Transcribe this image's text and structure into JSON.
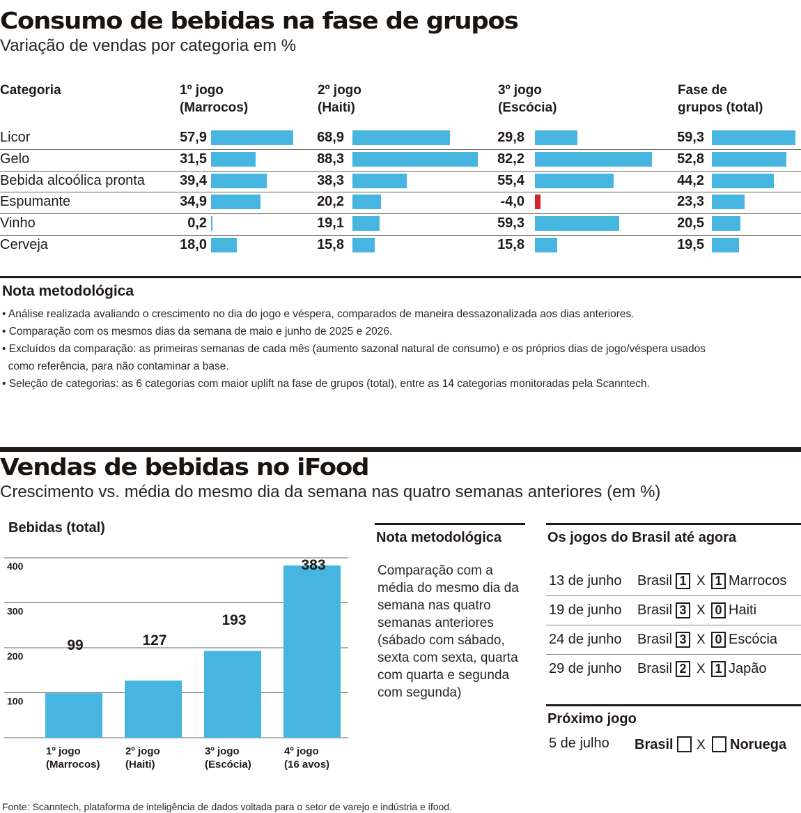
{
  "section1": {
    "title": "Consumo de bebidas na fase de grupos",
    "subtitle": "Variação de vendas por categoria em %",
    "headers": {
      "categoria": "Categoria",
      "g1": [
        "1º jogo",
        "(Marrocos)"
      ],
      "g2": [
        "2º jogo",
        "(Haiti)"
      ],
      "g3": [
        "3º jogo",
        "(Escócia)"
      ],
      "total": [
        "Fase de",
        "grupos (total)"
      ]
    },
    "colors": {
      "positive": "#46b6e0",
      "negative": "#d3232a"
    },
    "rows": [
      {
        "label": "Licor",
        "values": [
          "57,9",
          "68,9",
          "29,8",
          "59,3"
        ],
        "num": [
          57.9,
          68.9,
          29.8,
          59.3
        ]
      },
      {
        "label": "Gelo",
        "values": [
          "31,5",
          "88,3",
          "82,2",
          "52,8"
        ],
        "num": [
          31.5,
          88.3,
          82.2,
          52.8
        ]
      },
      {
        "label": "Bebida alcoólica pronta",
        "values": [
          "39,4",
          "38,3",
          "55,4",
          "44,2"
        ],
        "num": [
          39.4,
          38.3,
          55.4,
          44.2
        ]
      },
      {
        "label": "Espumante",
        "values": [
          "34,9",
          "20,2",
          "-4,0",
          "23,3"
        ],
        "num": [
          34.9,
          20.2,
          -4.0,
          23.3
        ]
      },
      {
        "label": "Vinho",
        "values": [
          "0,2",
          "19,1",
          "59,3",
          "20,5"
        ],
        "num": [
          0.2,
          19.1,
          59.3,
          20.5
        ]
      },
      {
        "label": "Cerveja",
        "values": [
          "18,0",
          "15,8",
          "15,8",
          "19,5"
        ],
        "num": [
          18.0,
          15.8,
          15.8,
          19.5
        ]
      }
    ],
    "note_title": "Nota metodológica",
    "notes": [
      "• Análise realizada avaliando o crescimento no dia do jogo e véspera, comparados de maneira dessazonalizada aos dias anteriores.",
      "• Comparação com os mesmos dias da semana de maio e junho de 2025 e 2026.",
      "• Excluídos da comparação: as primeiras semanas de cada mês (aumento sazonal natural de consumo) e os próprios dias de jogo/véspera usados",
      "  como referência, para não contaminar a base.",
      "• Seleção de categorias: as 6 categorias com maior uplift na fase de grupos (total), entre as 14 categorias monitoradas pela Scanntech."
    ]
  },
  "section2": {
    "title": "Vendas de bebidas no iFood",
    "subtitle": "Crescimento vs. média do mesmo dia da semana nas quatro semanas anteriores (em %)",
    "note_title": "Nota metodológica",
    "note_lines": [
      "Comparação com a",
      "média do mesmo dia da",
      "semana nas quatro",
      "semanas anteriores",
      "(sábado com sábado,",
      "sexta com sexta, quarta",
      "com quarta e segunda",
      "com segunda)"
    ],
    "games_title": "Os jogos do Brasil até agora",
    "games": [
      {
        "date": "13 de junho",
        "home": "Brasil",
        "home_score": "1",
        "x": "X",
        "away_score": "1",
        "away": "Marrocos"
      },
      {
        "date": "19 de junho",
        "home": "Brasil",
        "home_score": "3",
        "x": "X",
        "away_score": "0",
        "away": "Haiti"
      },
      {
        "date": "24 de junho",
        "home": "Brasil",
        "home_score": "3",
        "x": "X",
        "away_score": "0",
        "away": "Escócia"
      },
      {
        "date": "29 de junho",
        "home": "Brasil",
        "home_score": "2",
        "x": "X",
        "away_score": "1",
        "away": "Japão"
      }
    ],
    "next_title": "Próximo jogo",
    "next_game": {
      "date": "5 de julho",
      "home": "Brasil",
      "x": "X",
      "away": "Noruega"
    }
  },
  "chart_data": {
    "type": "bar",
    "title": "Bebidas (total)",
    "categories": [
      [
        "1º jogo",
        "(Marrocos)"
      ],
      [
        "2º jogo",
        "(Haiti)"
      ],
      [
        "3º jogo",
        "(Escócia)"
      ],
      [
        "4º jogo",
        "(16 avos)"
      ]
    ],
    "values": [
      99,
      127,
      193,
      383
    ],
    "value_labels": [
      "99",
      "127",
      "193",
      "383"
    ],
    "yticks": [
      "100",
      "200",
      "300",
      "400"
    ],
    "ylim": [
      0,
      400
    ],
    "grid": true,
    "bar_color": "#46b6e0"
  },
  "footer": "Fonte: Scanntech, plataforma de inteligência de dados voltada para o setor de varejo e indústria e ifood."
}
